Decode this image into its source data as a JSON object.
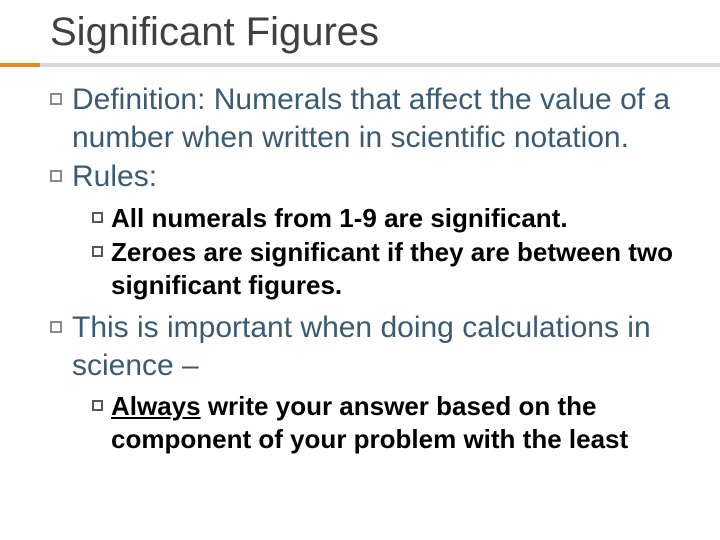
{
  "slide": {
    "title": "Significant Figures",
    "title_color": "#404040",
    "title_fontsize": 40,
    "accent_left_color": "#e38b27",
    "accent_right_color": "#d9d9d9",
    "body_color": "#3b5a73",
    "body_fontsize": 30,
    "sub_color": "#000000",
    "sub_fontsize": 26,
    "bullets": [
      {
        "text": "Definition: Numerals that affect the value of a number when written in scientific notation."
      },
      {
        "text": "Rules:",
        "subs": [
          {
            "text": "All numerals from 1-9 are significant."
          },
          {
            "text": "Zeroes are significant if they are between two significant figures."
          }
        ]
      },
      {
        "text": "This is important when doing calculations in science –",
        "subs": [
          {
            "underlined_lead": "Always",
            "rest": " write your answer based on the component of your problem with the least"
          }
        ]
      }
    ]
  }
}
